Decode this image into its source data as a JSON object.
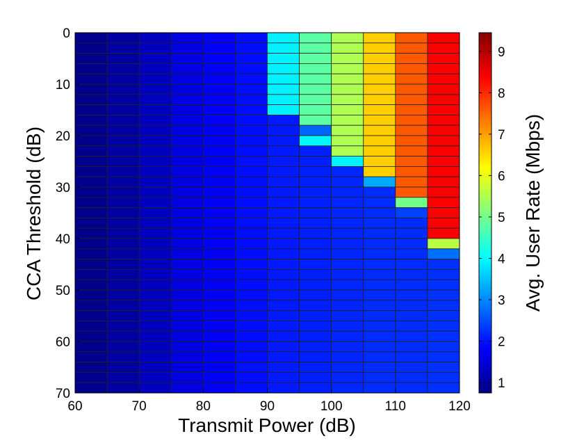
{
  "chart_data": {
    "type": "heatmap",
    "title": "",
    "xlabel": "Transmit Power (dB)",
    "ylabel": "CCA Threshold (dB)",
    "colorbar_label": "Avg. User Rate (Mbps)",
    "colormap": "jet",
    "x_ticks": [
      60,
      70,
      80,
      90,
      100,
      110,
      120
    ],
    "y_ticks": [
      0,
      10,
      20,
      30,
      40,
      50,
      60,
      70
    ],
    "colorbar_ticks": [
      1,
      2,
      3,
      4,
      5,
      6,
      7,
      8,
      9
    ],
    "xlim": [
      60,
      120
    ],
    "ylim": [
      0,
      70
    ],
    "clim": [
      0.75,
      9.45
    ],
    "y_reversed": true,
    "x_columns": [
      60,
      65,
      70,
      75,
      80,
      85,
      90,
      95,
      100,
      105,
      110,
      115
    ],
    "x_step": 5,
    "y_step": 2,
    "row_count": 35,
    "base_values": [
      0.85,
      1.05,
      1.3,
      1.55,
      1.75,
      1.95,
      2.05,
      2.1,
      2.15,
      2.2,
      2.2,
      2.25
    ],
    "high_values": [
      0.85,
      1.05,
      1.3,
      1.6,
      1.8,
      2.8,
      3.9,
      4.8,
      5.5,
      6.6,
      7.6,
      8.4
    ],
    "switch_row": [
      35,
      35,
      35,
      35,
      3,
      0,
      8,
      10,
      12,
      14,
      16,
      20
    ],
    "transition": {
      "7,10": 3.95,
      "7,9": 2.7,
      "8,12": 3.9,
      "9,14": 3.3,
      "10,16": 5.0,
      "10,17": 2.4,
      "11,20": 5.6,
      "11,21": 2.8
    },
    "gridlines": true
  }
}
